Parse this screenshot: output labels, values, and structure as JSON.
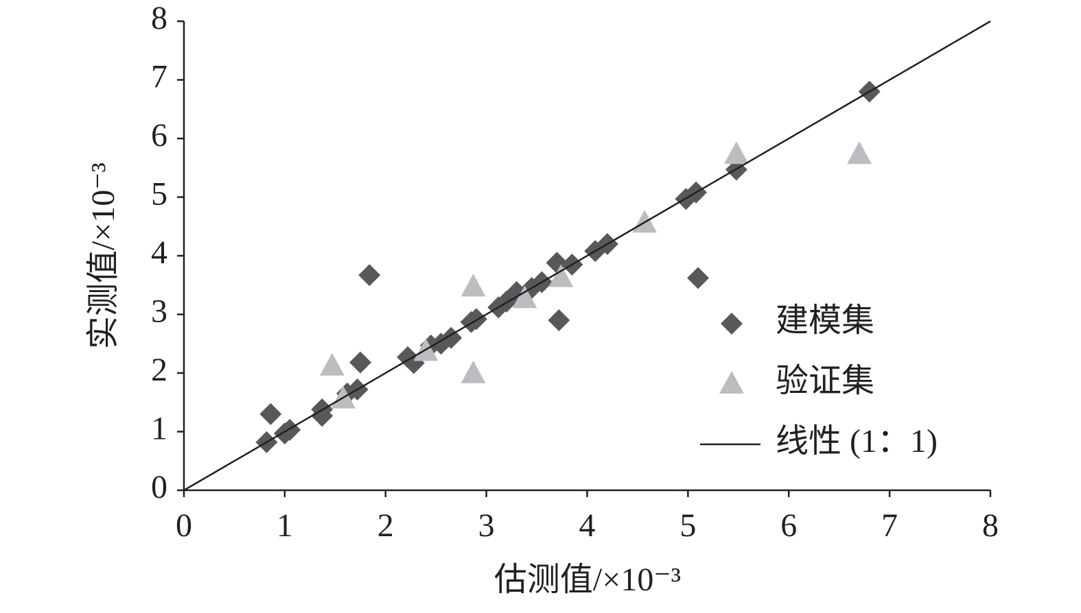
{
  "chart_data": {
    "type": "scatter",
    "x_label": "估测值/×10⁻³",
    "y_label": "实测值/×10⁻³",
    "xlim": [
      0,
      8
    ],
    "ylim": [
      0,
      8
    ],
    "xticks": [
      0,
      1,
      2,
      3,
      4,
      5,
      6,
      7,
      8
    ],
    "yticks": [
      0,
      1,
      2,
      3,
      4,
      5,
      6,
      7,
      8
    ],
    "series": [
      {
        "name": "建模集",
        "color": "#58585a",
        "marker": "diamond",
        "x": [
          0.82,
          0.86,
          1.0,
          1.05,
          1.37,
          1.37,
          1.62,
          1.72,
          1.75,
          1.84,
          2.22,
          2.28,
          2.45,
          2.55,
          2.65,
          2.85,
          2.9,
          3.12,
          3.2,
          3.3,
          3.45,
          3.55,
          3.7,
          3.72,
          3.85,
          4.08,
          4.2,
          4.98,
          5.08,
          5.1,
          5.48,
          6.8
        ],
        "values": [
          0.82,
          1.3,
          0.97,
          1.03,
          1.38,
          1.27,
          1.65,
          1.72,
          2.18,
          3.67,
          2.27,
          2.17,
          2.47,
          2.5,
          2.6,
          2.87,
          2.92,
          3.12,
          3.22,
          3.38,
          3.45,
          3.55,
          3.88,
          2.9,
          3.85,
          4.08,
          4.2,
          4.97,
          5.08,
          3.62,
          5.47,
          6.8
        ]
      },
      {
        "name": "验证集",
        "color": "#bcbdc0",
        "marker": "triangle",
        "x": [
          1.47,
          1.58,
          2.4,
          2.87,
          2.87,
          3.38,
          3.74,
          4.57,
          5.48,
          6.7
        ],
        "values": [
          2.12,
          1.56,
          2.37,
          3.47,
          1.99,
          3.27,
          3.63,
          4.56,
          5.73,
          5.73
        ]
      },
      {
        "name": "线性 (1：1)",
        "color": "#231f20",
        "marker": "line",
        "x": [
          0,
          8
        ],
        "values": [
          0,
          8
        ]
      }
    ]
  }
}
